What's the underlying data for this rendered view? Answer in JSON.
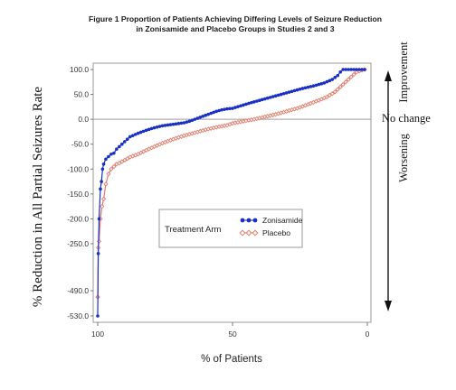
{
  "chart_data": {
    "type": "line",
    "title_line1": "Figure 1 Proportion of Patients Achieving Differing Levels of Seizure Reduction",
    "title_line2": "in Zonisamide and Placebo Groups in Studies 2 and 3",
    "xlabel": "% of Patients",
    "ylabel": "% Reduction in All Partial Seizures Rate",
    "x_ticks": [
      "100",
      "50",
      "0"
    ],
    "x_reversed": true,
    "xlim": [
      100,
      0
    ],
    "y_ticks": [
      "100.0",
      "50.0",
      "0.0",
      "-50.0",
      "-100.0",
      "-150.0",
      "-200.0",
      "-250.0",
      "-490.0",
      "-530.0"
    ],
    "y_tick_values": [
      100,
      50,
      0,
      -50,
      -100,
      -150,
      -200,
      -250,
      -490,
      -530
    ],
    "ylim": [
      -540,
      110
    ],
    "legend_title": "Treatment Arm",
    "legend_position": "center",
    "annotations": {
      "improvement": "Improvement",
      "no_change": "No change",
      "worsening": "Worsening"
    },
    "series": [
      {
        "name": "Zonisamide",
        "color": "#1a2fc4",
        "marker": "filled-circle",
        "x": [
          100,
          99.8,
          99.5,
          99,
          98.6,
          98.2,
          97.8,
          97,
          96,
          95,
          94,
          93,
          92,
          90,
          88,
          85,
          82,
          79,
          76,
          72,
          68,
          66,
          64,
          62,
          60,
          58,
          56,
          54,
          52,
          50,
          47,
          44,
          40,
          36,
          32,
          28,
          24,
          20,
          16,
          13,
          11,
          10,
          9,
          8,
          6,
          4,
          1
        ],
        "y": [
          -530,
          -300,
          -200,
          -140,
          -125,
          -100,
          -90,
          -80,
          -75,
          -70,
          -68,
          -60,
          -55,
          -45,
          -35,
          -28,
          -22,
          -17,
          -13,
          -10,
          -7,
          -4,
          0,
          4,
          8,
          12,
          16,
          19,
          21,
          22,
          27,
          32,
          38,
          44,
          50,
          56,
          62,
          67,
          73,
          80,
          88,
          95,
          100,
          100,
          100,
          100,
          100
        ]
      },
      {
        "name": "Placebo",
        "color": "#e07a6a",
        "marker": "open-diamond",
        "x": [
          100,
          99.8,
          99.5,
          99,
          98.4,
          97.8,
          97,
          96,
          95,
          94,
          93,
          92,
          90,
          88,
          85,
          82,
          79,
          76,
          72,
          68,
          64,
          60,
          56,
          52,
          50,
          46,
          42,
          38,
          34,
          30,
          26,
          22,
          18,
          15,
          12,
          10,
          8,
          6,
          4,
          1
        ],
        "y": [
          -500,
          -270,
          -245,
          -200,
          -175,
          -160,
          -130,
          -110,
          -100,
          -95,
          -90,
          -88,
          -82,
          -76,
          -70,
          -62,
          -55,
          -48,
          -40,
          -33,
          -27,
          -21,
          -16,
          -12,
          -8,
          -4,
          0,
          5,
          10,
          16,
          22,
          30,
          38,
          45,
          55,
          65,
          75,
          85,
          95,
          100
        ]
      }
    ]
  }
}
